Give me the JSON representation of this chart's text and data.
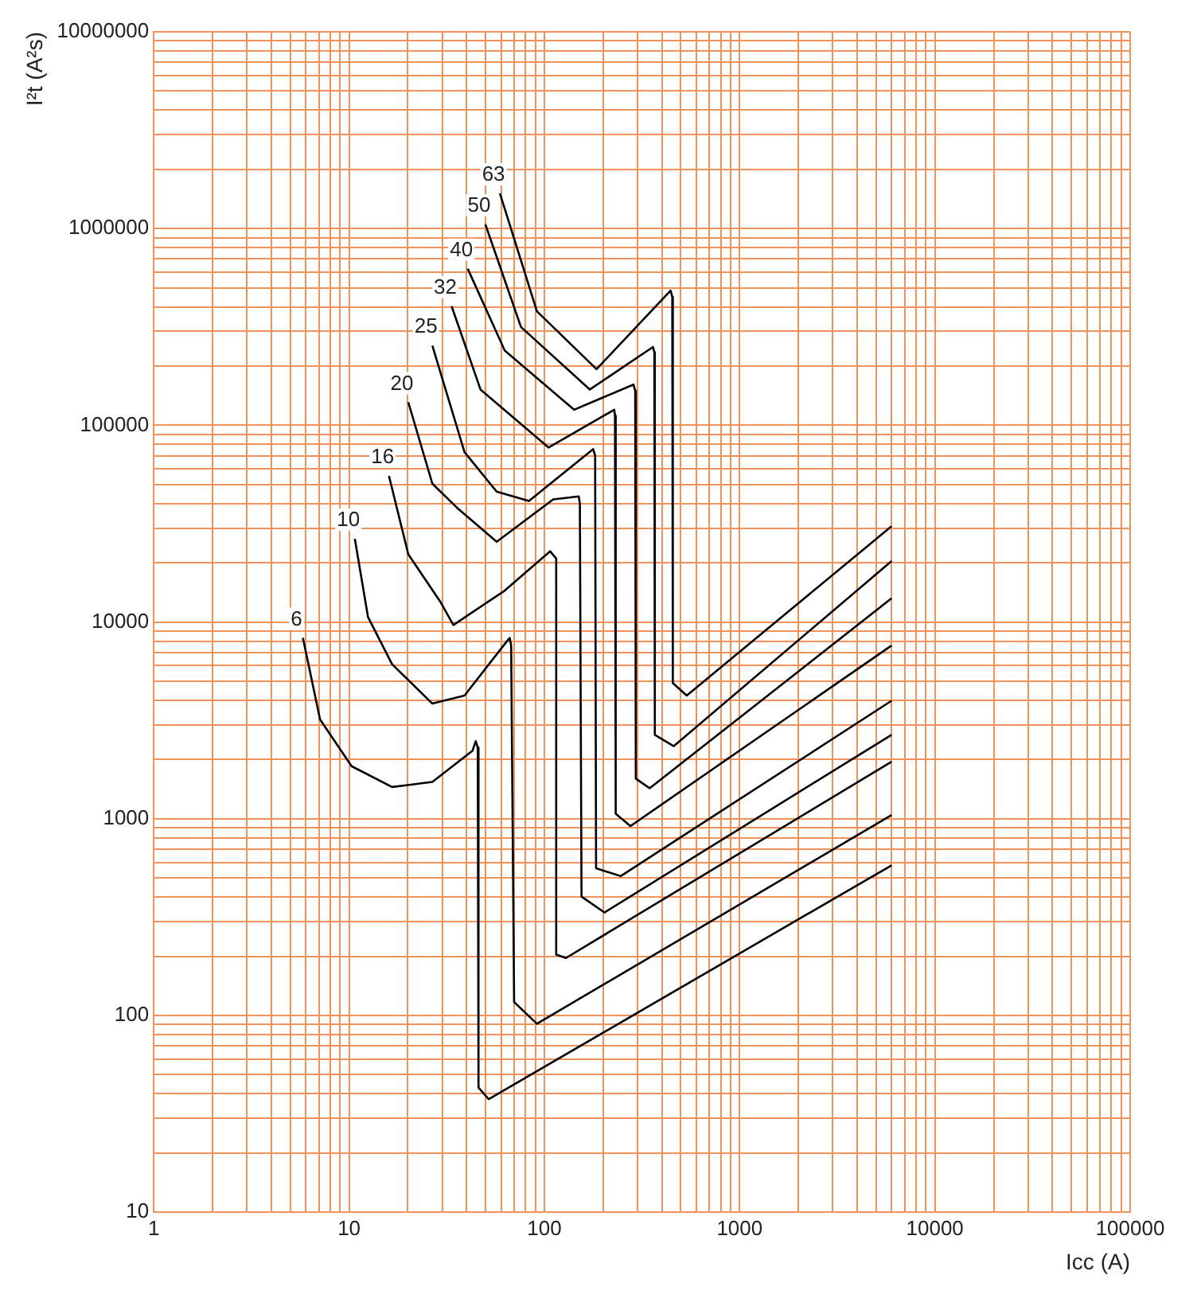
{
  "chart_data": {
    "type": "line",
    "xlabel": "Icc (A)",
    "ylabel": "I²t (A²s)",
    "log": "xy",
    "grid": true,
    "legend": false,
    "marker": "none",
    "line_style": "solid",
    "xlim": [
      1,
      100000
    ],
    "xticks": [
      1,
      {
        "value": 2,
        "label": null
      },
      {
        "value": 3,
        "label": null
      },
      {
        "value": 4,
        "label": null
      },
      {
        "value": 5,
        "label": null
      },
      {
        "value": 6,
        "label": null
      },
      {
        "value": 7,
        "label": null
      },
      {
        "value": 8,
        "label": null
      },
      {
        "value": 9,
        "label": null
      },
      10,
      {
        "value": 20,
        "label": null
      },
      {
        "value": 30,
        "label": null
      },
      {
        "value": 40,
        "label": null
      },
      {
        "value": 50,
        "label": null
      },
      {
        "value": 60,
        "label": null
      },
      {
        "value": 70,
        "label": null
      },
      {
        "value": 80,
        "label": null
      },
      {
        "value": 90,
        "label": null
      },
      100,
      {
        "value": 200,
        "label": null
      },
      {
        "value": 300,
        "label": null
      },
      {
        "value": 400,
        "label": null
      },
      {
        "value": 500,
        "label": null
      },
      {
        "value": 600,
        "label": null
      },
      {
        "value": 700,
        "label": null
      },
      {
        "value": 800,
        "label": null
      },
      {
        "value": 900,
        "label": null
      },
      1000,
      {
        "value": 2000,
        "label": null
      },
      {
        "value": 3000,
        "label": null
      },
      {
        "value": 4000,
        "label": null
      },
      {
        "value": 5000,
        "label": null
      },
      {
        "value": 6000,
        "label": null
      },
      {
        "value": 7000,
        "label": null
      },
      {
        "value": 8000,
        "label": null
      },
      {
        "value": 9000,
        "label": null
      },
      10000,
      {
        "value": 20000,
        "label": null
      },
      {
        "value": 30000,
        "label": null
      },
      {
        "value": 40000,
        "label": null
      },
      {
        "value": 50000,
        "label": null
      },
      {
        "value": 60000,
        "label": null
      },
      {
        "value": 70000,
        "label": null
      },
      {
        "value": 80000,
        "label": null
      },
      {
        "value": 90000,
        "label": null
      },
      100000
    ],
    "ylim": [
      10,
      10000000
    ],
    "yticks": [
      10,
      {
        "value": 20,
        "label": null
      },
      {
        "value": 30,
        "label": null
      },
      {
        "value": 40,
        "label": null
      },
      {
        "value": 50,
        "label": null
      },
      {
        "value": 60,
        "label": null
      },
      {
        "value": 70,
        "label": null
      },
      {
        "value": 80,
        "label": null
      },
      {
        "value": 90,
        "label": null
      },
      100,
      {
        "value": 200,
        "label": null
      },
      {
        "value": 300,
        "label": null
      },
      {
        "value": 400,
        "label": null
      },
      {
        "value": 500,
        "label": null
      },
      {
        "value": 600,
        "label": null
      },
      {
        "value": 700,
        "label": null
      },
      {
        "value": 800,
        "label": null
      },
      {
        "value": 900,
        "label": null
      },
      1000,
      {
        "value": 2000,
        "label": null
      },
      {
        "value": 3000,
        "label": null
      },
      {
        "value": 4000,
        "label": null
      },
      {
        "value": 5000,
        "label": null
      },
      {
        "value": 6000,
        "label": null
      },
      {
        "value": 7000,
        "label": null
      },
      {
        "value": 8000,
        "label": null
      },
      {
        "value": 9000,
        "label": null
      },
      10000,
      {
        "value": 20000,
        "label": null
      },
      {
        "value": 30000,
        "label": null
      },
      {
        "value": 40000,
        "label": null
      },
      {
        "value": 50000,
        "label": null
      },
      {
        "value": 60000,
        "label": null
      },
      {
        "value": 70000,
        "label": null
      },
      {
        "value": 80000,
        "label": null
      },
      {
        "value": 90000,
        "label": null
      },
      100000,
      {
        "value": 200000,
        "label": null
      },
      {
        "value": 300000,
        "label": null
      },
      {
        "value": 400000,
        "label": null
      },
      {
        "value": 500000,
        "label": null
      },
      {
        "value": 600000,
        "label": null
      },
      {
        "value": 700000,
        "label": null
      },
      {
        "value": 800000,
        "label": null
      },
      {
        "value": 900000,
        "label": null
      },
      1000000,
      {
        "value": 2000000,
        "label": null
      },
      {
        "value": 3000000,
        "label": null
      },
      {
        "value": 4000000,
        "label": null
      },
      {
        "value": 5000000,
        "label": null
      },
      {
        "value": 6000000,
        "label": null
      },
      {
        "value": 7000000,
        "label": null
      },
      {
        "value": 8000000,
        "label": null
      },
      {
        "value": 9000000,
        "label": null
      },
      10000000
    ],
    "series": [
      {
        "name": "6",
        "color": "#000000",
        "x": [
          5.8,
          7.1,
          10.3,
          16.6,
          26.7,
          42.9,
          44.5,
          45.6,
          46,
          51.9,
          6000
        ],
        "values": [
          8300,
          3200,
          1850,
          1450,
          1540,
          2220,
          2480,
          2300,
          43,
          37.6,
          580
        ]
      },
      {
        "name": "10",
        "color": "#000000",
        "x": [
          10.7,
          12.5,
          16.6,
          26.7,
          39,
          62.7,
          66.4,
          67.6,
          70,
          91.6,
          6000
        ],
        "values": [
          26500,
          10600,
          6100,
          3850,
          4230,
          7740,
          8300,
          7600,
          117,
          90.8,
          1045
        ]
      },
      {
        "name": "16",
        "color": "#000000",
        "x": [
          16,
          20.1,
          29.3,
          34.2,
          62.7,
          107,
          115,
          115,
          129,
          6000
        ],
        "values": [
          55300,
          22100,
          12700,
          9660,
          14450,
          22900,
          21000,
          204,
          196,
          1950
        ]
      },
      {
        "name": "20",
        "color": "#000000",
        "x": [
          20.1,
          26.7,
          35.5,
          57,
          111,
          150,
          152,
          155,
          203,
          6000
        ],
        "values": [
          131000,
          50500,
          38300,
          25600,
          42000,
          43500,
          40000,
          402,
          334,
          2670
        ]
      },
      {
        "name": "25",
        "color": "#000000",
        "x": [
          26.7,
          39,
          57,
          83.4,
          178,
          182,
          184,
          246,
          6000
        ],
        "values": [
          254000,
          73000,
          46000,
          41200,
          75700,
          70000,
          560,
          511,
          3980
        ]
      },
      {
        "name": "32",
        "color": "#000000",
        "x": [
          33.5,
          47.1,
          105,
          228,
          230,
          232,
          276,
          6000
        ],
        "values": [
          403000,
          152000,
          77100,
          120000,
          112000,
          1060,
          918,
          7600
        ]
      },
      {
        "name": "40",
        "color": "#000000",
        "x": [
          40.5,
          62.7,
          142,
          286,
          292,
          294,
          346,
          6000
        ],
        "values": [
          625000,
          240000,
          120000,
          161000,
          150000,
          1600,
          1430,
          13200
        ]
      },
      {
        "name": "50",
        "color": "#000000",
        "x": [
          49.9,
          75.9,
          171,
          360,
          366,
          368,
          460,
          6000
        ],
        "values": [
          1050000,
          316000,
          152000,
          250000,
          235000,
          2670,
          2340,
          20400
        ]
      },
      {
        "name": "63",
        "color": "#000000",
        "x": [
          59.2,
          91.6,
          185,
          443,
          452,
          455,
          536,
          6000
        ],
        "values": [
          1510000,
          380000,
          193000,
          484000,
          450000,
          4900,
          4230,
          30700
        ]
      }
    ]
  }
}
